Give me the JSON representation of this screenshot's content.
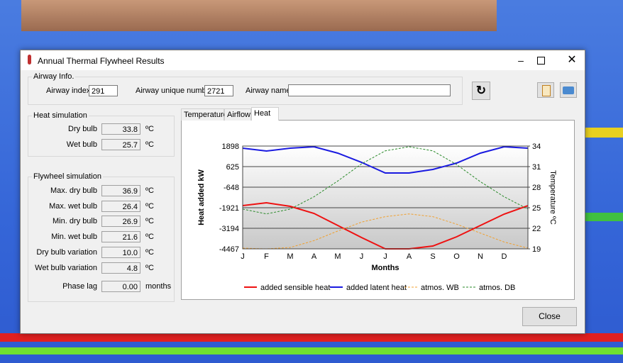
{
  "window": {
    "title": "Annual Thermal Flywheel Results",
    "airway_info": {
      "group": "Airway Info.",
      "index_label": "Airway index",
      "index": "291",
      "unique_label": "Airway unique number",
      "unique": "2721",
      "name_label": "Airway name"
    },
    "heat_simulation": {
      "group": "Heat simulation",
      "rows": [
        {
          "label": "Dry bulb",
          "value": "33.8",
          "unit": "ºC"
        },
        {
          "label": "Wet bulb",
          "value": "25.7",
          "unit": "ºC"
        }
      ]
    },
    "flywheel_simulation": {
      "group": "Flywheel simulation",
      "rows": [
        {
          "label": "Max. dry bulb",
          "value": "36.9",
          "unit": "ºC"
        },
        {
          "label": "Max. wet bulb",
          "value": "26.4",
          "unit": "ºC"
        },
        {
          "label": "Min. dry bulb",
          "value": "26.9",
          "unit": "ºC"
        },
        {
          "label": "Min. wet bulb",
          "value": "21.6",
          "unit": "ºC"
        },
        {
          "label": "Dry bulb variation",
          "value": "10.0",
          "unit": "ºC"
        },
        {
          "label": "Wet bulb variation",
          "value": "4.8",
          "unit": "ºC"
        },
        {
          "label": "Phase lag",
          "value": "0.00",
          "unit": "months"
        }
      ]
    },
    "tabs": [
      "Temperatures",
      "Airflow",
      "Heat"
    ],
    "close": "Close"
  },
  "chart_data": {
    "type": "line",
    "xlabel": "Months",
    "ylabel": "Heat added  kW",
    "y2label": "Temperature  ºC",
    "categories": [
      "J",
      "F",
      "M",
      "A",
      "M",
      "J",
      "J",
      "A",
      "S",
      "O",
      "N",
      "D",
      null
    ],
    "ylim": [
      -4467,
      1898
    ],
    "yticks": [
      1898,
      625,
      -648,
      -1921,
      -3194,
      -4467
    ],
    "y2lim": [
      19,
      34
    ],
    "y2ticks": [
      34,
      31,
      28,
      25,
      22,
      19
    ],
    "grid": true,
    "legend": "bottom",
    "series": [
      {
        "name": "added sensible heat",
        "color": "#ee1111",
        "line_style": "solid",
        "values": [
          -1790,
          -1614,
          -1833,
          -2272,
          -3019,
          -3765,
          -4467,
          -4467,
          -4292,
          -3721,
          -3019,
          -2316,
          -1790
        ]
      },
      {
        "name": "added latent heat",
        "color": "#1a1ae0",
        "line_style": "solid",
        "values": [
          1766,
          1591,
          1766,
          1854,
          1459,
          888,
          230,
          230,
          449,
          844,
          1459,
          1854,
          1766
        ]
      },
      {
        "name": "atmos. WB",
        "color": "#f0a030",
        "line_style": "dashed",
        "axis": "y2",
        "values": [
          19.1,
          19.0,
          19.2,
          20.2,
          21.6,
          22.9,
          23.7,
          24.1,
          23.7,
          22.6,
          21.3,
          20.0,
          19.1
        ]
      },
      {
        "name": "atmos. DB",
        "color": "#2a8a2a",
        "line_style": "dashed",
        "axis": "y2",
        "values": [
          24.8,
          24.1,
          24.8,
          26.6,
          28.9,
          31.4,
          33.3,
          33.9,
          33.3,
          31.3,
          28.8,
          26.6,
          24.8
        ]
      }
    ]
  }
}
